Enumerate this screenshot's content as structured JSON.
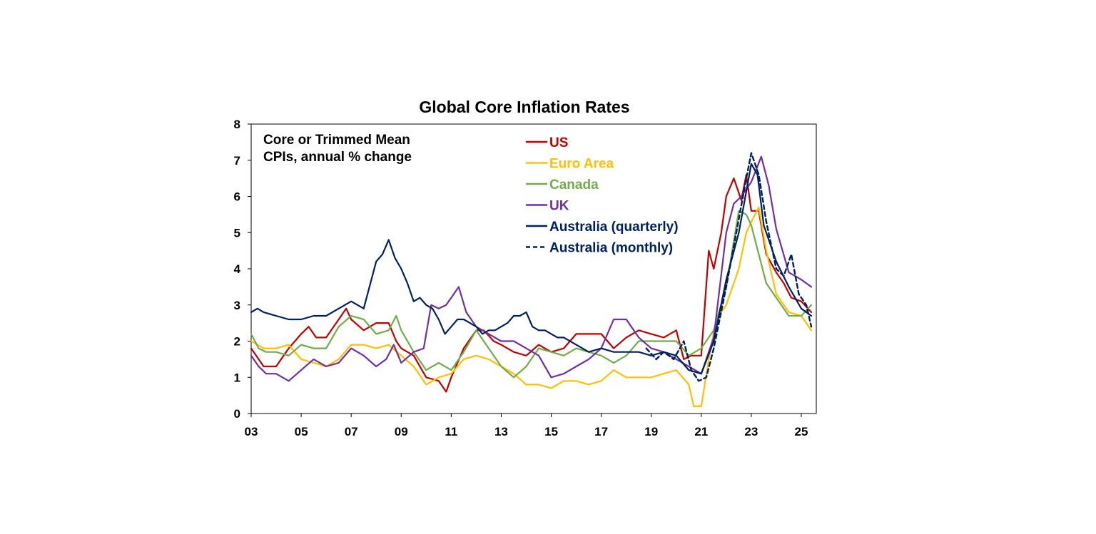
{
  "chart_data": {
    "type": "line",
    "title": "Global Core Inflation Rates",
    "subtitle_lines": [
      "Core or Trimmed Mean",
      "CPIs, annual % change"
    ],
    "xlabel": "",
    "ylabel": "",
    "xlim": [
      2003,
      2025.6
    ],
    "ylim": [
      0,
      8
    ],
    "x_ticks": [
      2003,
      2005,
      2007,
      2009,
      2011,
      2013,
      2015,
      2017,
      2019,
      2021,
      2023,
      2025
    ],
    "x_tick_labels": [
      "03",
      "05",
      "07",
      "09",
      "11",
      "13",
      "15",
      "17",
      "19",
      "21",
      "23",
      "25"
    ],
    "y_ticks": [
      0,
      1,
      2,
      3,
      4,
      5,
      6,
      7,
      8
    ],
    "y_tick_labels": [
      "0",
      "1",
      "2",
      "3",
      "4",
      "5",
      "6",
      "7",
      "8"
    ],
    "grid": false,
    "legend_position": "top-center",
    "series": [
      {
        "name": "US",
        "color": "#C00000",
        "dash": "solid",
        "x": [
          2003.0,
          2003.5,
          2004.0,
          2004.5,
          2005.0,
          2005.3,
          2005.6,
          2006.0,
          2006.5,
          2006.8,
          2007.0,
          2007.5,
          2008.0,
          2008.5,
          2008.8,
          2009.0,
          2009.5,
          2010.0,
          2010.5,
          2010.8,
          2011.0,
          2011.5,
          2012.0,
          2012.3,
          2012.7,
          2013.0,
          2013.5,
          2014.0,
          2014.5,
          2015.0,
          2015.5,
          2016.0,
          2016.5,
          2017.0,
          2017.5,
          2018.0,
          2018.5,
          2019.0,
          2019.5,
          2020.0,
          2020.3,
          2020.6,
          2021.0,
          2021.3,
          2021.5,
          2021.8,
          2022.0,
          2022.3,
          2022.6,
          2022.8,
          2023.0,
          2023.3,
          2023.6,
          2024.0,
          2024.3,
          2024.6,
          2025.0,
          2025.4
        ],
        "values": [
          1.8,
          1.3,
          1.3,
          1.8,
          2.2,
          2.4,
          2.1,
          2.1,
          2.6,
          2.9,
          2.6,
          2.3,
          2.5,
          2.5,
          2.0,
          1.8,
          1.6,
          1.0,
          0.9,
          0.6,
          1.0,
          1.8,
          2.3,
          2.3,
          2.0,
          1.9,
          1.7,
          1.6,
          1.9,
          1.7,
          1.8,
          2.2,
          2.2,
          2.2,
          1.8,
          2.1,
          2.3,
          2.2,
          2.1,
          2.3,
          1.5,
          1.6,
          1.6,
          4.5,
          4.0,
          5.0,
          6.0,
          6.5,
          5.9,
          6.6,
          5.6,
          5.6,
          4.4,
          3.9,
          3.6,
          3.2,
          3.1,
          2.8
        ]
      },
      {
        "name": "Euro Area",
        "color": "#FFC000",
        "dash": "solid",
        "x": [
          2003.0,
          2003.5,
          2004.0,
          2004.5,
          2005.0,
          2005.5,
          2006.0,
          2006.5,
          2007.0,
          2007.5,
          2008.0,
          2008.5,
          2009.0,
          2009.5,
          2010.0,
          2010.5,
          2011.0,
          2011.5,
          2012.0,
          2012.5,
          2013.0,
          2013.5,
          2014.0,
          2014.5,
          2015.0,
          2015.5,
          2016.0,
          2016.5,
          2017.0,
          2017.5,
          2018.0,
          2018.5,
          2019.0,
          2019.5,
          2020.0,
          2020.5,
          2020.7,
          2021.0,
          2021.3,
          2021.6,
          2022.0,
          2022.5,
          2022.8,
          2023.0,
          2023.3,
          2023.6,
          2024.0,
          2024.5,
          2025.0,
          2025.4
        ],
        "values": [
          2.0,
          1.8,
          1.8,
          1.9,
          1.5,
          1.4,
          1.3,
          1.5,
          1.9,
          1.9,
          1.8,
          1.9,
          1.6,
          1.3,
          0.8,
          1.0,
          1.1,
          1.5,
          1.6,
          1.5,
          1.3,
          1.1,
          0.8,
          0.8,
          0.7,
          0.9,
          0.9,
          0.8,
          0.9,
          1.2,
          1.0,
          1.0,
          1.0,
          1.1,
          1.2,
          0.8,
          0.2,
          0.2,
          1.5,
          2.6,
          3.0,
          4.0,
          5.0,
          5.3,
          5.7,
          4.5,
          3.3,
          2.8,
          2.7,
          2.3
        ]
      },
      {
        "name": "Canada",
        "color": "#70AD47",
        "dash": "solid",
        "x": [
          2003.0,
          2003.3,
          2003.6,
          2004.0,
          2004.5,
          2005.0,
          2005.5,
          2006.0,
          2006.5,
          2007.0,
          2007.5,
          2008.0,
          2008.5,
          2008.8,
          2009.0,
          2009.5,
          2010.0,
          2010.5,
          2011.0,
          2011.5,
          2012.0,
          2012.5,
          2013.0,
          2013.5,
          2014.0,
          2014.5,
          2015.0,
          2015.5,
          2016.0,
          2016.5,
          2017.0,
          2017.5,
          2018.0,
          2018.5,
          2019.0,
          2019.5,
          2020.0,
          2020.5,
          2021.0,
          2021.5,
          2022.0,
          2022.5,
          2022.8,
          2023.0,
          2023.3,
          2023.6,
          2024.0,
          2024.5,
          2025.0,
          2025.4
        ],
        "values": [
          2.2,
          1.8,
          1.7,
          1.7,
          1.6,
          1.9,
          1.8,
          1.8,
          2.4,
          2.7,
          2.6,
          2.2,
          2.3,
          2.7,
          2.3,
          1.7,
          1.2,
          1.4,
          1.2,
          1.7,
          2.3,
          1.8,
          1.3,
          1.0,
          1.3,
          1.8,
          1.7,
          1.6,
          1.8,
          1.7,
          1.6,
          1.4,
          1.6,
          2.0,
          2.0,
          2.0,
          2.0,
          1.6,
          1.8,
          2.3,
          3.5,
          5.6,
          5.5,
          5.2,
          4.4,
          3.6,
          3.2,
          2.7,
          2.7,
          3.0
        ]
      },
      {
        "name": "UK",
        "color": "#7030A0",
        "dash": "solid",
        "x": [
          2003.0,
          2003.3,
          2003.6,
          2004.0,
          2004.5,
          2005.0,
          2005.5,
          2006.0,
          2006.5,
          2007.0,
          2007.5,
          2008.0,
          2008.4,
          2008.7,
          2009.0,
          2009.5,
          2009.9,
          2010.2,
          2010.5,
          2010.8,
          2011.0,
          2011.3,
          2011.6,
          2012.0,
          2012.5,
          2013.0,
          2013.5,
          2014.0,
          2014.5,
          2015.0,
          2015.5,
          2016.0,
          2016.5,
          2017.0,
          2017.5,
          2018.0,
          2018.5,
          2019.0,
          2019.5,
          2020.0,
          2020.5,
          2021.0,
          2021.5,
          2022.0,
          2022.3,
          2022.6,
          2023.0,
          2023.4,
          2023.7,
          2024.0,
          2024.5,
          2025.0,
          2025.4
        ],
        "values": [
          1.6,
          1.3,
          1.1,
          1.1,
          0.9,
          1.2,
          1.5,
          1.3,
          1.4,
          1.8,
          1.6,
          1.3,
          1.5,
          1.9,
          1.4,
          1.7,
          1.8,
          3.0,
          2.9,
          3.0,
          3.2,
          3.5,
          2.8,
          2.4,
          2.2,
          2.0,
          2.0,
          1.8,
          1.6,
          1.0,
          1.1,
          1.3,
          1.5,
          1.8,
          2.6,
          2.6,
          2.1,
          1.8,
          1.7,
          1.5,
          1.3,
          1.1,
          2.1,
          5.0,
          5.8,
          6.0,
          6.4,
          7.1,
          6.3,
          5.1,
          3.9,
          3.7,
          3.5
        ]
      },
      {
        "name": "Australia (quarterly)",
        "color": "#002060",
        "dash": "solid",
        "x": [
          2003.0,
          2003.25,
          2003.5,
          2004.0,
          2004.5,
          2005.0,
          2005.5,
          2006.0,
          2006.5,
          2007.0,
          2007.5,
          2008.0,
          2008.25,
          2008.5,
          2008.75,
          2009.0,
          2009.25,
          2009.5,
          2009.75,
          2010.0,
          2010.25,
          2010.5,
          2010.75,
          2011.0,
          2011.25,
          2011.5,
          2011.75,
          2012.0,
          2012.25,
          2012.5,
          2012.75,
          2013.0,
          2013.25,
          2013.5,
          2013.75,
          2014.0,
          2014.25,
          2014.5,
          2014.75,
          2015.0,
          2015.25,
          2015.5,
          2016.0,
          2016.5,
          2017.0,
          2017.5,
          2018.0,
          2018.5,
          2019.0,
          2019.5,
          2020.0,
          2020.5,
          2021.0,
          2021.5,
          2022.0,
          2022.5,
          2023.0,
          2023.25,
          2023.5,
          2024.0,
          2024.5,
          2025.0,
          2025.4
        ],
        "values": [
          2.8,
          2.9,
          2.8,
          2.7,
          2.6,
          2.6,
          2.7,
          2.7,
          2.9,
          3.1,
          2.9,
          4.2,
          4.4,
          4.8,
          4.3,
          4.0,
          3.6,
          3.1,
          3.2,
          3.0,
          2.9,
          2.6,
          2.2,
          2.4,
          2.6,
          2.6,
          2.5,
          2.4,
          2.2,
          2.3,
          2.3,
          2.4,
          2.5,
          2.7,
          2.7,
          2.8,
          2.4,
          2.3,
          2.3,
          2.2,
          2.1,
          2.1,
          1.9,
          1.7,
          1.8,
          1.7,
          1.7,
          1.7,
          1.6,
          1.7,
          1.6,
          1.2,
          1.1,
          2.0,
          3.7,
          5.0,
          6.9,
          6.6,
          5.2,
          4.2,
          3.5,
          2.9,
          2.7
        ]
      },
      {
        "name": "Australia (monthly)",
        "color": "#002060",
        "dash": "dashed",
        "x": [
          2018.8,
          2019.2,
          2019.5,
          2019.9,
          2020.3,
          2020.6,
          2020.9,
          2021.2,
          2021.5,
          2022.0,
          2022.4,
          2022.8,
          2023.0,
          2023.3,
          2023.6,
          2024.0,
          2024.3,
          2024.6,
          2024.9,
          2025.2,
          2025.4
        ],
        "values": [
          1.8,
          1.5,
          1.7,
          1.5,
          2.0,
          1.2,
          0.9,
          1.0,
          1.8,
          3.5,
          5.0,
          6.5,
          7.2,
          6.6,
          5.3,
          4.0,
          3.8,
          4.4,
          3.3,
          3.0,
          2.4
        ]
      }
    ]
  }
}
